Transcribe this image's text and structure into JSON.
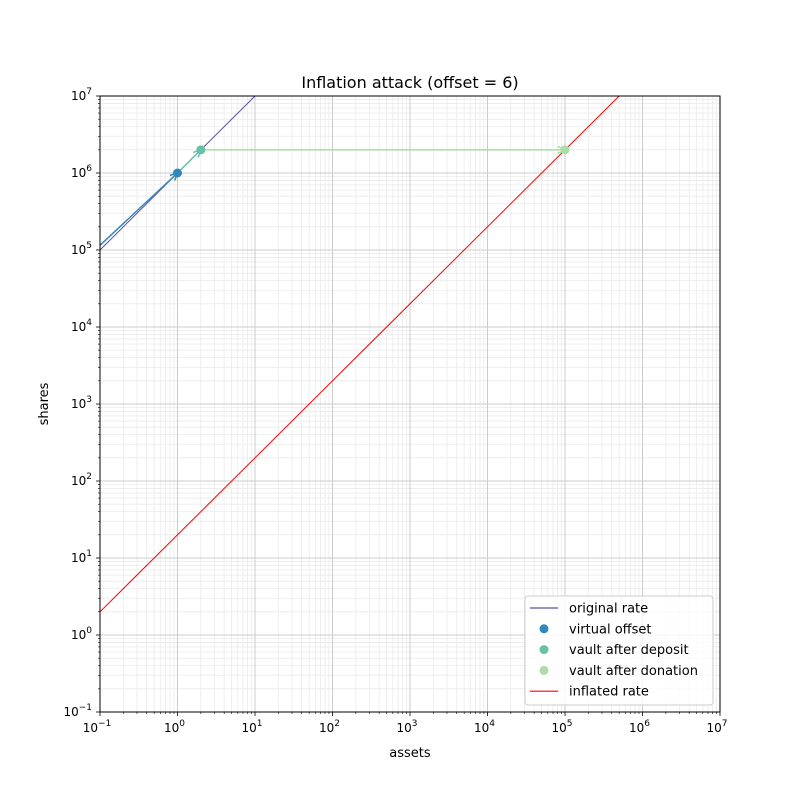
{
  "chart_data": {
    "type": "line",
    "title": "Inflation attack (offset = 6)",
    "xlabel": "assets",
    "ylabel": "shares",
    "xscale": "log",
    "yscale": "log",
    "xlim": [
      0.1,
      10000000
    ],
    "ylim": [
      0.1,
      10000000
    ],
    "grid": true,
    "minor_grid": true,
    "legend_position": "lower-right",
    "x_ticks": [
      {
        "exp": "-1",
        "base": "10"
      },
      {
        "exp": "0",
        "base": "10"
      },
      {
        "exp": "1",
        "base": "10"
      },
      {
        "exp": "2",
        "base": "10"
      },
      {
        "exp": "3",
        "base": "10"
      },
      {
        "exp": "4",
        "base": "10"
      },
      {
        "exp": "5",
        "base": "10"
      },
      {
        "exp": "6",
        "base": "10"
      },
      {
        "exp": "7",
        "base": "10"
      }
    ],
    "y_ticks": [
      {
        "exp": "-1",
        "base": "10"
      },
      {
        "exp": "0",
        "base": "10"
      },
      {
        "exp": "1",
        "base": "10"
      },
      {
        "exp": "2",
        "base": "10"
      },
      {
        "exp": "3",
        "base": "10"
      },
      {
        "exp": "4",
        "base": "10"
      },
      {
        "exp": "5",
        "base": "10"
      },
      {
        "exp": "6",
        "base": "10"
      },
      {
        "exp": "7",
        "base": "10"
      }
    ],
    "series": [
      {
        "name": "original rate",
        "kind": "line",
        "color": "#5e4fa2",
        "x": [
          0.1,
          10
        ],
        "y": [
          100000,
          10000000
        ]
      },
      {
        "name": "virtual offset",
        "kind": "scatter",
        "color": "#3288bd",
        "x": [
          1
        ],
        "y": [
          1000000
        ]
      },
      {
        "name": "vault after deposit",
        "kind": "scatter",
        "color": "#66c2a5",
        "x": [
          2
        ],
        "y": [
          2000000
        ]
      },
      {
        "name": "vault after donation",
        "kind": "scatter",
        "color": "#abdda4",
        "x": [
          100000
        ],
        "y": [
          2000000
        ]
      },
      {
        "name": "inflated rate",
        "kind": "line",
        "color": "#ff0000",
        "x": [
          0.1,
          500000
        ],
        "y": [
          2,
          10000000
        ]
      }
    ],
    "arrows": [
      {
        "color": "#3288bd",
        "from": [
          0.1,
          115000
        ],
        "to": [
          1,
          1000000
        ]
      },
      {
        "color": "#66c2a5",
        "from": [
          1,
          1000000
        ],
        "to": [
          2,
          2000000
        ]
      },
      {
        "color": "#abdda4",
        "from": [
          2,
          2000000
        ],
        "to": [
          100000,
          2000000
        ]
      }
    ]
  }
}
